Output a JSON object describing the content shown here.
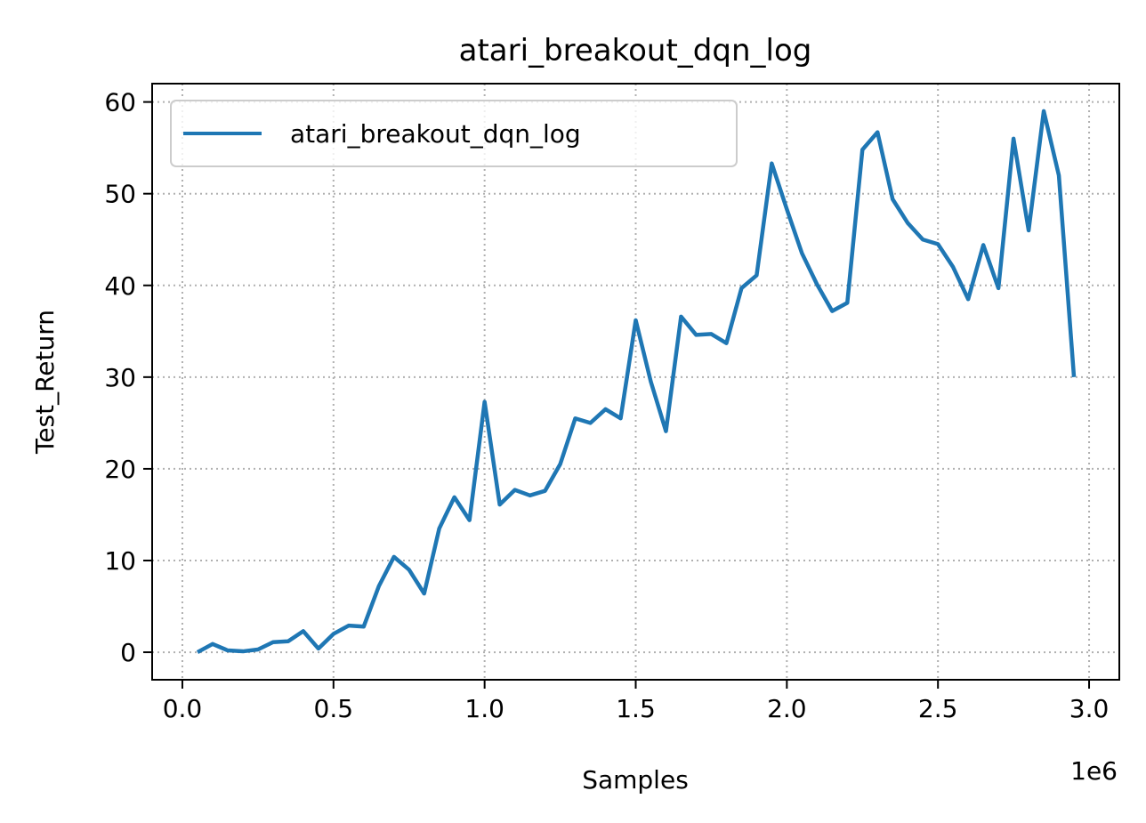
{
  "chart_data": {
    "type": "line",
    "title": "atari_breakout_dqn_log",
    "xlabel": "Samples",
    "ylabel": "Test_Return",
    "x_offset_text": "1e6",
    "xlim": [
      -0.1,
      3.1
    ],
    "ylim": [
      -3,
      62
    ],
    "x_scale_factor": 1000000,
    "x_ticks": [
      0.0,
      0.5,
      1.0,
      1.5,
      2.0,
      2.5,
      3.0
    ],
    "x_tick_labels": [
      "0.0",
      "0.5",
      "1.0",
      "1.5",
      "2.0",
      "2.5",
      "3.0"
    ],
    "y_ticks": [
      0,
      10,
      20,
      30,
      40,
      50,
      60
    ],
    "y_tick_labels": [
      "0",
      "10",
      "20",
      "30",
      "40",
      "50",
      "60"
    ],
    "grid": true,
    "legend_position": "upper-left",
    "colors": {
      "series": "#1f77b4",
      "grid": "#b0b0b0"
    },
    "series": [
      {
        "name": "atari_breakout_dqn_log",
        "x": [
          50000,
          100000,
          150000,
          200000,
          250000,
          300000,
          350000,
          400000,
          450000,
          500000,
          550000,
          600000,
          650000,
          700000,
          750000,
          800000,
          850000,
          900000,
          950000,
          1000000,
          1050000,
          1100000,
          1150000,
          1200000,
          1250000,
          1300000,
          1350000,
          1400000,
          1450000,
          1500000,
          1550000,
          1600000,
          1650000,
          1700000,
          1750000,
          1800000,
          1850000,
          1900000,
          1950000,
          2000000,
          2050000,
          2100000,
          2150000,
          2200000,
          2250000,
          2300000,
          2350000,
          2400000,
          2450000,
          2500000,
          2550000,
          2600000,
          2650000,
          2700000,
          2750000,
          2800000,
          2850000,
          2900000,
          2950000
        ],
        "y": [
          0.0,
          0.9,
          0.2,
          0.1,
          0.3,
          1.1,
          1.2,
          2.3,
          0.4,
          2.0,
          2.9,
          2.8,
          7.2,
          10.4,
          9.0,
          6.4,
          13.5,
          16.9,
          14.4,
          27.3,
          16.1,
          17.7,
          17.1,
          17.6,
          20.5,
          25.5,
          25.0,
          26.5,
          25.5,
          36.2,
          29.5,
          24.1,
          36.6,
          34.6,
          34.7,
          33.7,
          39.7,
          41.1,
          53.3,
          48.3,
          43.5,
          40.1,
          37.2,
          38.1,
          54.8,
          56.7,
          49.4,
          46.8,
          45.0,
          44.5,
          42.0,
          38.5,
          44.4,
          39.7,
          56.0,
          46.0,
          59.0,
          52.0,
          30.0
        ]
      }
    ]
  }
}
